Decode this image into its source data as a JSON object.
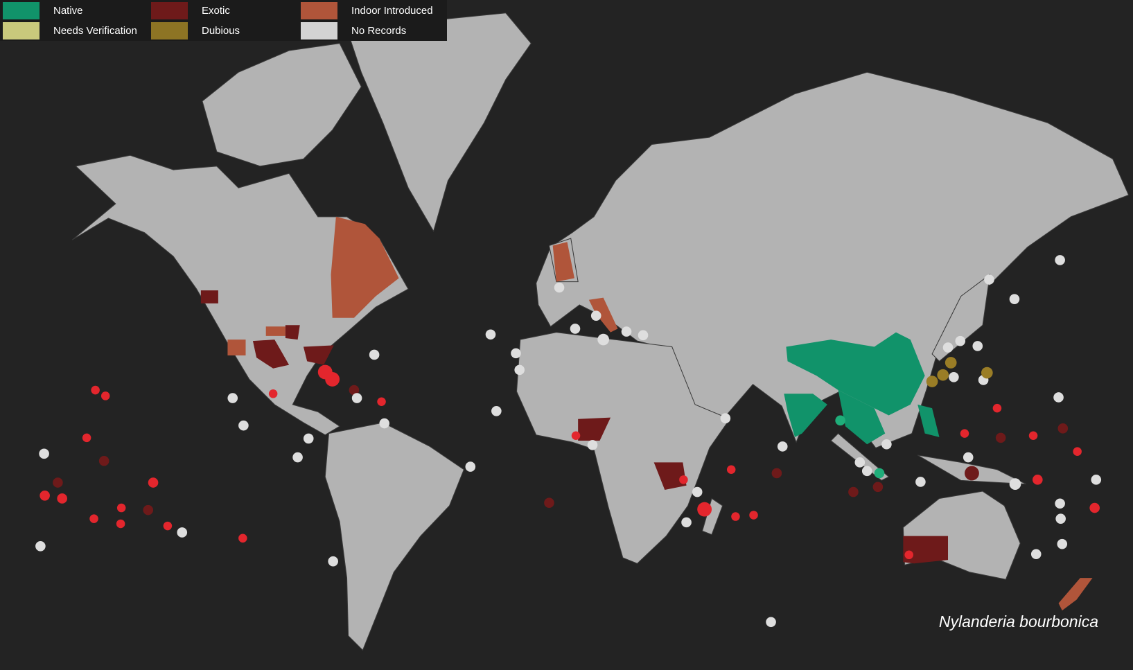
{
  "legend": {
    "items": [
      {
        "label": "Native",
        "color": "#11936a"
      },
      {
        "label": "Needs Verification",
        "color": "#c9c97c"
      },
      {
        "label": "Exotic",
        "color": "#6e1a1a"
      },
      {
        "label": "Dubious",
        "color": "#8d7424"
      },
      {
        "label": "Indoor Introduced",
        "color": "#b0553a"
      },
      {
        "label": "No Records",
        "color": "#d3d3d3"
      }
    ]
  },
  "caption": "Nylanderia bourbonica"
}
